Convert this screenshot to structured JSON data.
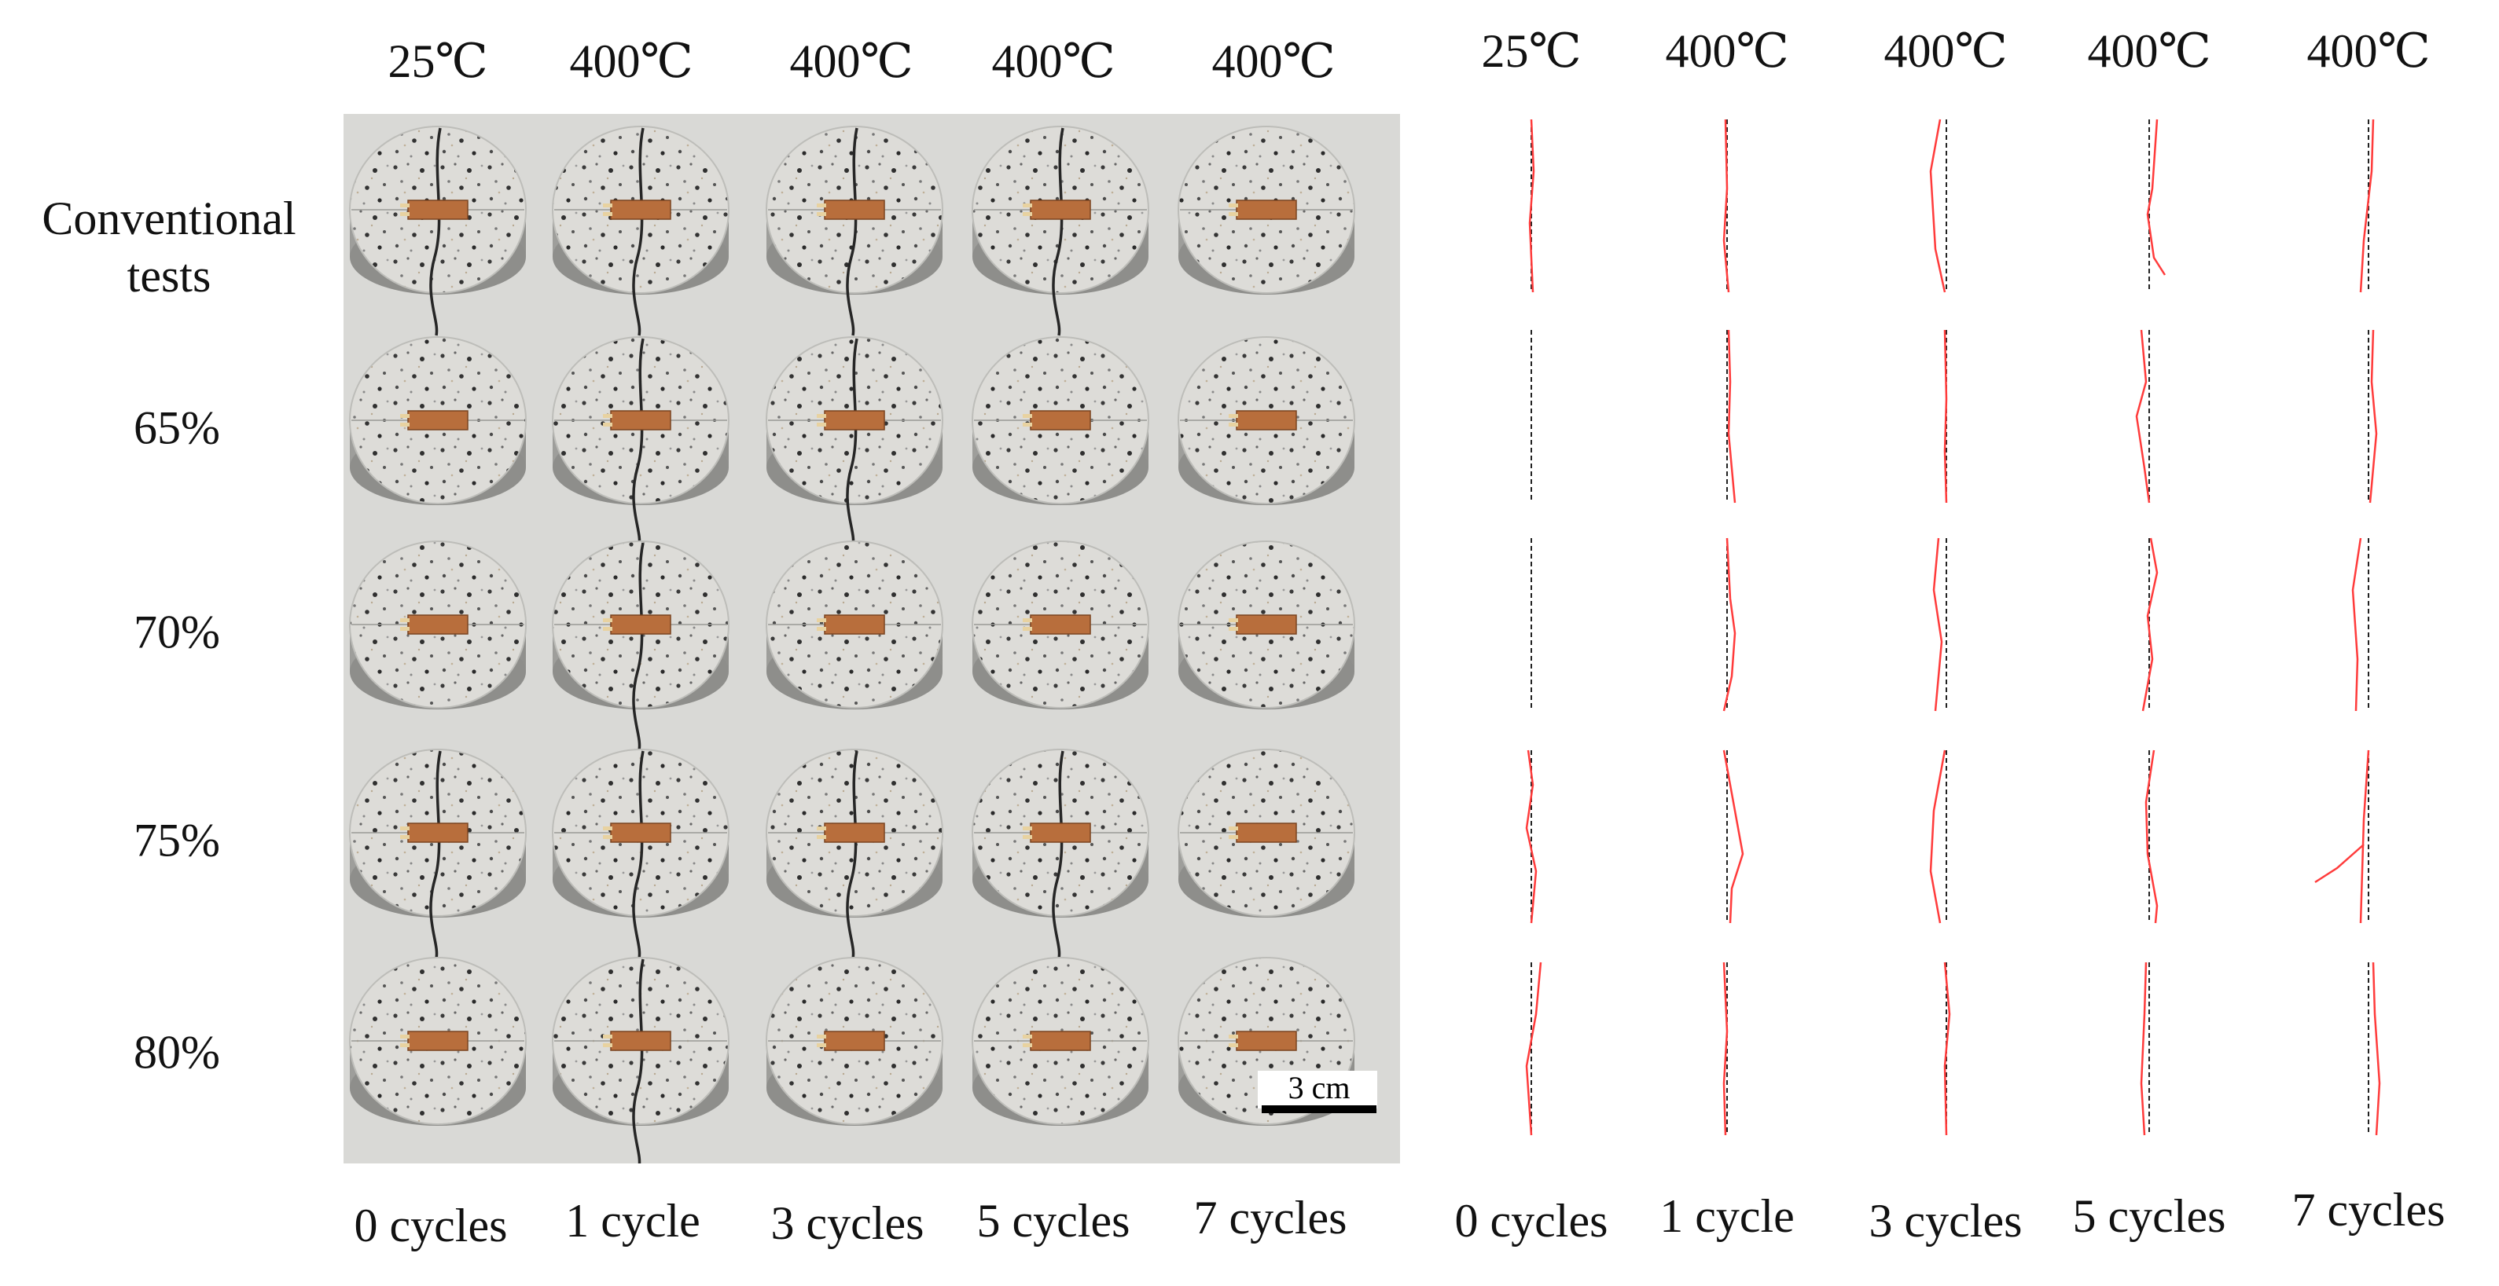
{
  "photo_columns": {
    "temperatures": [
      "25℃",
      "400℃",
      "400℃",
      "400℃",
      "400℃"
    ],
    "cycles": [
      "0 cycles",
      "1 cycle",
      "3 cycles",
      "5 cycles",
      "7 cycles"
    ]
  },
  "trace_columns": {
    "temperatures": [
      "25℃",
      "400℃",
      "400℃",
      "400℃",
      "400℃"
    ],
    "cycles": [
      "0 cycles",
      "1 cycle",
      "3 cycles",
      "5 cycles",
      "7 cycles"
    ]
  },
  "rows": [
    "Conventional tests",
    "65%",
    "70%",
    "75%",
    "80%"
  ],
  "scale_bar": {
    "label": "3 cm"
  },
  "colors": {
    "granite": "#dcdcda",
    "granite_shadow": "#a9a9a6",
    "background": "#d8d8d5",
    "gauge": "#b86e3c",
    "crack": "#2a2a2a",
    "trace": "#ff3b3b",
    "reference": "#222222"
  }
}
